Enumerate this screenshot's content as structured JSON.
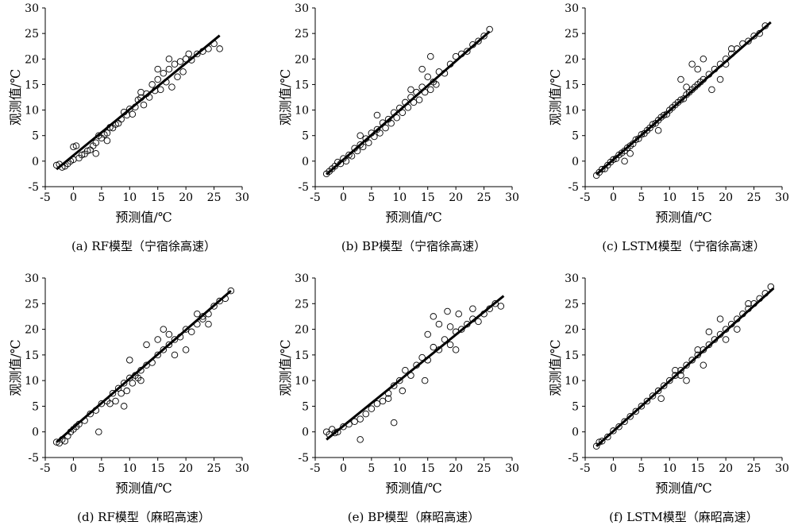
{
  "figure": {
    "background": "#ffffff",
    "ink": "#000000",
    "axis_tick_values": [
      "-5",
      "0",
      "5",
      "10",
      "15",
      "20",
      "25",
      "30"
    ]
  },
  "chart_data": [
    {
      "type": "scatter",
      "caption": "(a) RF模型（宁宿徐高速）",
      "xlabel": "预测值/℃",
      "ylabel": "观测值/℃",
      "xlim": [
        -5,
        30
      ],
      "ylim": [
        -5,
        30
      ],
      "grid": false,
      "fit_line": {
        "x": [
          -3,
          26
        ],
        "y": [
          -1.6,
          24.6
        ]
      },
      "points": [
        [
          -3,
          -0.8
        ],
        [
          -2.5,
          -0.6
        ],
        [
          -2,
          -1.2
        ],
        [
          -1.5,
          -1
        ],
        [
          -1,
          -0.5
        ],
        [
          -0.5,
          0
        ],
        [
          0,
          0.3
        ],
        [
          0,
          2.8
        ],
        [
          0.5,
          3
        ],
        [
          1,
          0.6
        ],
        [
          1.5,
          1.2
        ],
        [
          2,
          1.4
        ],
        [
          2.5,
          2
        ],
        [
          3,
          2.2
        ],
        [
          3.5,
          3
        ],
        [
          4,
          3.6
        ],
        [
          4.5,
          5
        ],
        [
          5,
          4.5
        ],
        [
          5.5,
          5.2
        ],
        [
          6,
          5.5
        ],
        [
          6.5,
          6.6
        ],
        [
          7,
          6.5
        ],
        [
          7.5,
          7.2
        ],
        [
          8,
          7.4
        ],
        [
          8.5,
          8.2
        ],
        [
          9,
          9.6
        ],
        [
          9.5,
          9
        ],
        [
          10,
          10.2
        ],
        [
          10.5,
          9.2
        ],
        [
          11,
          10.6
        ],
        [
          11.5,
          12
        ],
        [
          12,
          12.4
        ],
        [
          12.5,
          11
        ],
        [
          13,
          13.2
        ],
        [
          13.5,
          12.5
        ],
        [
          14,
          15
        ],
        [
          14.5,
          13.8
        ],
        [
          15,
          16
        ],
        [
          15.5,
          14
        ],
        [
          16,
          17.2
        ],
        [
          16.5,
          15.5
        ],
        [
          17,
          18
        ],
        [
          17.5,
          14.5
        ],
        [
          18,
          19
        ],
        [
          18.5,
          16.5
        ],
        [
          19,
          19.5
        ],
        [
          19.5,
          17.5
        ],
        [
          20,
          20
        ],
        [
          20.5,
          21
        ],
        [
          21,
          19.8
        ],
        [
          22,
          21
        ],
        [
          23,
          21.5
        ],
        [
          24,
          22
        ],
        [
          25,
          23
        ],
        [
          26,
          22
        ],
        [
          4,
          1.5
        ],
        [
          6,
          4
        ],
        [
          12,
          13.5
        ],
        [
          15,
          18
        ],
        [
          17,
          20
        ]
      ]
    },
    {
      "type": "scatter",
      "caption": "(b) BP模型（宁宿徐高速）",
      "xlabel": "预测值/℃",
      "ylabel": "观测值/℃",
      "xlim": [
        -5,
        30
      ],
      "ylim": [
        -5,
        30
      ],
      "grid": false,
      "fit_line": {
        "x": [
          -3,
          26
        ],
        "y": [
          -2.6,
          25.4
        ]
      },
      "points": [
        [
          -3,
          -2.5
        ],
        [
          -2.5,
          -2
        ],
        [
          -2,
          -1.5
        ],
        [
          -1.5,
          -1
        ],
        [
          -1,
          -0.2
        ],
        [
          -0.5,
          -0.5
        ],
        [
          0,
          0.5
        ],
        [
          0.5,
          0
        ],
        [
          1,
          1.2
        ],
        [
          1.5,
          1
        ],
        [
          2,
          2.5
        ],
        [
          2.5,
          2
        ],
        [
          3,
          3.2
        ],
        [
          3.5,
          2.8
        ],
        [
          4,
          4.4
        ],
        [
          4.5,
          3.6
        ],
        [
          5,
          5.5
        ],
        [
          5.5,
          4.8
        ],
        [
          6,
          6.2
        ],
        [
          6.5,
          5.5
        ],
        [
          7,
          7.5
        ],
        [
          7.5,
          6.5
        ],
        [
          8,
          8.2
        ],
        [
          8.5,
          7.4
        ],
        [
          9,
          9.5
        ],
        [
          9.5,
          8.5
        ],
        [
          10,
          10.4
        ],
        [
          10.5,
          9.5
        ],
        [
          11,
          11.5
        ],
        [
          11.5,
          10.5
        ],
        [
          12,
          12.5
        ],
        [
          12.5,
          11.5
        ],
        [
          13,
          13.5
        ],
        [
          13.5,
          12
        ],
        [
          14,
          14.5
        ],
        [
          14.5,
          13.5
        ],
        [
          15,
          16.5
        ],
        [
          15.5,
          14
        ],
        [
          16,
          15.5
        ],
        [
          16.5,
          15
        ],
        [
          17,
          17.5
        ],
        [
          18,
          17.2
        ],
        [
          19,
          19
        ],
        [
          20,
          20.5
        ],
        [
          21,
          21
        ],
        [
          22,
          21.5
        ],
        [
          23,
          22.8
        ],
        [
          24,
          23.5
        ],
        [
          25,
          24.5
        ],
        [
          26,
          25.8
        ],
        [
          15.5,
          20.5
        ],
        [
          14,
          18
        ],
        [
          3,
          5
        ],
        [
          12,
          14
        ],
        [
          6,
          9
        ]
      ]
    },
    {
      "type": "scatter",
      "caption": "(c) LSTM模型（宁宿徐高速）",
      "xlabel": "预测值/℃",
      "ylabel": "观测值/℃",
      "xlim": [
        -5,
        30
      ],
      "ylim": [
        -5,
        30
      ],
      "grid": false,
      "fit_line": {
        "x": [
          -3,
          28
        ],
        "y": [
          -2.6,
          27.2
        ]
      },
      "points": [
        [
          -3,
          -2.8
        ],
        [
          -2.5,
          -2.2
        ],
        [
          -2,
          -1.6
        ],
        [
          -1.5,
          -1.5
        ],
        [
          -1,
          -0.8
        ],
        [
          -0.5,
          -0.2
        ],
        [
          0,
          0.3
        ],
        [
          0.5,
          0.5
        ],
        [
          1,
          1.2
        ],
        [
          1.5,
          1.6
        ],
        [
          2,
          2
        ],
        [
          2.5,
          2.6
        ],
        [
          3,
          3
        ],
        [
          3.5,
          3.4
        ],
        [
          4,
          4.2
        ],
        [
          4.5,
          4.4
        ],
        [
          5,
          5.2
        ],
        [
          5.5,
          5.4
        ],
        [
          6,
          6
        ],
        [
          6.5,
          6.5
        ],
        [
          7,
          7.2
        ],
        [
          7.5,
          7.4
        ],
        [
          8,
          8
        ],
        [
          8.5,
          8.6
        ],
        [
          9,
          9
        ],
        [
          9.5,
          9.2
        ],
        [
          10,
          10
        ],
        [
          10.5,
          10.5
        ],
        [
          11,
          11
        ],
        [
          11.5,
          11.5
        ],
        [
          12,
          12
        ],
        [
          12.5,
          12.2
        ],
        [
          13,
          13
        ],
        [
          13.5,
          13.5
        ],
        [
          14,
          14
        ],
        [
          14.5,
          14.5
        ],
        [
          15,
          15
        ],
        [
          15.5,
          15.5
        ],
        [
          16,
          16
        ],
        [
          17,
          17
        ],
        [
          18,
          18
        ],
        [
          19,
          19
        ],
        [
          20,
          20
        ],
        [
          21,
          21
        ],
        [
          22,
          22
        ],
        [
          23,
          23
        ],
        [
          24,
          23.5
        ],
        [
          25,
          24.5
        ],
        [
          26,
          25
        ],
        [
          27,
          26.5
        ],
        [
          2,
          0
        ],
        [
          3,
          1.5
        ],
        [
          12,
          16
        ],
        [
          15,
          18
        ],
        [
          19,
          16
        ],
        [
          14,
          19
        ],
        [
          16,
          20
        ],
        [
          20,
          19
        ],
        [
          8,
          6
        ],
        [
          17.5,
          14
        ],
        [
          13,
          14.5
        ],
        [
          21,
          22
        ]
      ]
    },
    {
      "type": "scatter",
      "caption": "(d) RF模型（麻昭高速）",
      "xlabel": "预测值/℃",
      "ylabel": "观测值/℃",
      "xlim": [
        -5,
        30
      ],
      "ylim": [
        -5,
        30
      ],
      "grid": false,
      "fit_line": {
        "x": [
          -3,
          28
        ],
        "y": [
          -2,
          27.5
        ]
      },
      "points": [
        [
          -3,
          -2
        ],
        [
          -2.5,
          -2.2
        ],
        [
          -2,
          -1.5
        ],
        [
          -1.5,
          -1.8
        ],
        [
          -1,
          -0.8
        ],
        [
          -0.5,
          0
        ],
        [
          0,
          0.5
        ],
        [
          0.5,
          1
        ],
        [
          1,
          1.5
        ],
        [
          2,
          2.2
        ],
        [
          3,
          3.5
        ],
        [
          4,
          4.2
        ],
        [
          4.5,
          0
        ],
        [
          5,
          5.5
        ],
        [
          6,
          6
        ],
        [
          6.5,
          5.5
        ],
        [
          7,
          7.5
        ],
        [
          7.5,
          6
        ],
        [
          8,
          8.5
        ],
        [
          8.5,
          7.5
        ],
        [
          9,
          9.5
        ],
        [
          9.5,
          8
        ],
        [
          10,
          10.5
        ],
        [
          10.5,
          9.5
        ],
        [
          11,
          11
        ],
        [
          11.5,
          10.5
        ],
        [
          12,
          12
        ],
        [
          13,
          13
        ],
        [
          14,
          13.5
        ],
        [
          15,
          15
        ],
        [
          16,
          16
        ],
        [
          17,
          17
        ],
        [
          18,
          18
        ],
        [
          19,
          18.5
        ],
        [
          20,
          20
        ],
        [
          21,
          19.5
        ],
        [
          22,
          21
        ],
        [
          23,
          22
        ],
        [
          24,
          23
        ],
        [
          25,
          24.5
        ],
        [
          26,
          25.5
        ],
        [
          27,
          26
        ],
        [
          28,
          27.5
        ],
        [
          16,
          20
        ],
        [
          18,
          15
        ],
        [
          20,
          16
        ],
        [
          15,
          18
        ],
        [
          12,
          10
        ],
        [
          22,
          23
        ],
        [
          24,
          21
        ],
        [
          10,
          14
        ],
        [
          17,
          19
        ],
        [
          23,
          22.5
        ],
        [
          9,
          5
        ],
        [
          13,
          17
        ]
      ]
    },
    {
      "type": "scatter",
      "caption": "(e) BP模型（麻昭高速）",
      "xlabel": "预测值/℃",
      "ylabel": "观测值/℃",
      "xlim": [
        -5,
        30
      ],
      "ylim": [
        -5,
        30
      ],
      "grid": false,
      "fit_line": {
        "x": [
          -3,
          28.5
        ],
        "y": [
          -1.5,
          26.5
        ]
      },
      "points": [
        [
          -3,
          0
        ],
        [
          -2.5,
          -0.5
        ],
        [
          -2,
          0.5
        ],
        [
          -1.5,
          -0.2
        ],
        [
          -1,
          0
        ],
        [
          0,
          1
        ],
        [
          1,
          1.5
        ],
        [
          2,
          2
        ],
        [
          3,
          -1.5
        ],
        [
          3,
          2.5
        ],
        [
          4,
          3.5
        ],
        [
          5,
          4.5
        ],
        [
          6,
          5.5
        ],
        [
          7,
          6
        ],
        [
          8,
          7.5
        ],
        [
          8,
          6.5
        ],
        [
          9,
          1.8
        ],
        [
          9,
          9
        ],
        [
          10,
          10
        ],
        [
          10.5,
          8
        ],
        [
          11,
          12
        ],
        [
          12,
          11
        ],
        [
          13,
          13
        ],
        [
          14,
          14.5
        ],
        [
          15,
          14
        ],
        [
          16,
          16.5
        ],
        [
          16,
          22.5
        ],
        [
          17,
          16
        ],
        [
          18,
          18
        ],
        [
          18.5,
          23.5
        ],
        [
          19,
          17
        ],
        [
          20,
          19.5
        ],
        [
          20.5,
          23
        ],
        [
          21,
          20
        ],
        [
          22,
          21
        ],
        [
          23,
          22
        ],
        [
          24,
          21.5
        ],
        [
          25,
          23
        ],
        [
          26,
          24
        ],
        [
          27,
          25
        ],
        [
          28,
          24.5
        ],
        [
          14.5,
          10
        ],
        [
          17,
          21
        ],
        [
          23,
          24
        ],
        [
          20,
          16
        ],
        [
          15,
          19
        ],
        [
          19,
          20.5
        ]
      ]
    },
    {
      "type": "scatter",
      "caption": "(f) LSTM模型（麻昭高速）",
      "xlabel": "预测值/℃",
      "ylabel": "观测值/℃",
      "xlim": [
        -5,
        30
      ],
      "ylim": [
        -5,
        30
      ],
      "grid": false,
      "fit_line": {
        "x": [
          -3,
          28.5
        ],
        "y": [
          -2.8,
          28
        ]
      },
      "points": [
        [
          -3,
          -2.8
        ],
        [
          -2.5,
          -2
        ],
        [
          -2,
          -1.8
        ],
        [
          -1,
          -1
        ],
        [
          0,
          0.2
        ],
        [
          1,
          1
        ],
        [
          2,
          2
        ],
        [
          3,
          3
        ],
        [
          4,
          4
        ],
        [
          5,
          5
        ],
        [
          6,
          6
        ],
        [
          7,
          7
        ],
        [
          8,
          8
        ],
        [
          8.5,
          6.5
        ],
        [
          9,
          9
        ],
        [
          10,
          10
        ],
        [
          11,
          11
        ],
        [
          12,
          12
        ],
        [
          13,
          13
        ],
        [
          14,
          14
        ],
        [
          15,
          15
        ],
        [
          16,
          16
        ],
        [
          17,
          17
        ],
        [
          18,
          18
        ],
        [
          19,
          19
        ],
        [
          20,
          20
        ],
        [
          21,
          21
        ],
        [
          22,
          22
        ],
        [
          23,
          23
        ],
        [
          24,
          24
        ],
        [
          25,
          25
        ],
        [
          26,
          26
        ],
        [
          27,
          27
        ],
        [
          28,
          28.3
        ],
        [
          12,
          11
        ],
        [
          15,
          16
        ],
        [
          17,
          19.5
        ],
        [
          19,
          22
        ],
        [
          20,
          18
        ],
        [
          22,
          20
        ],
        [
          24,
          25
        ],
        [
          16,
          13
        ],
        [
          13,
          10
        ],
        [
          11,
          12
        ]
      ]
    }
  ]
}
